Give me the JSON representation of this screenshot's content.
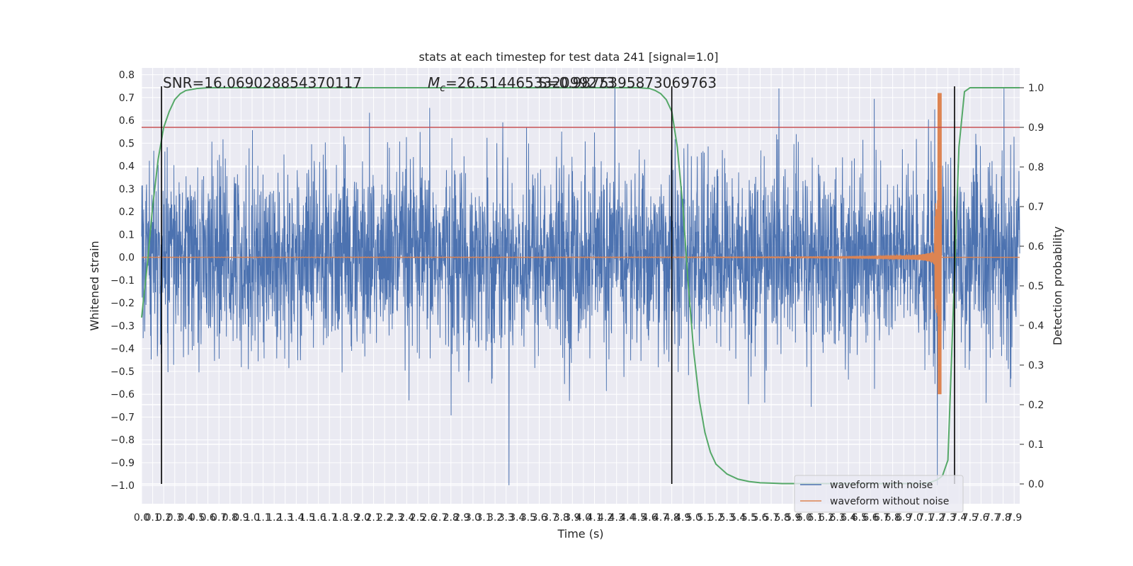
{
  "chart_data": {
    "type": "line",
    "title": "stats at each timestep for test data 241 [signal=1.0]",
    "xlabel": "Time (s)",
    "ylabel": "Whitened strain",
    "y2label": "Detection probability",
    "xlim": [
      0.0,
      7.95
    ],
    "ylim": [
      -1.08,
      0.83
    ],
    "y2lim": [
      -0.05,
      1.05
    ],
    "x_ticks": [
      0.0,
      0.1,
      0.2,
      0.3,
      0.4,
      0.5,
      0.6,
      0.7,
      0.8,
      0.9,
      1.0,
      1.1,
      1.2,
      1.3,
      1.4,
      1.5,
      1.6,
      1.7,
      1.8,
      1.9,
      2.0,
      2.1,
      2.2,
      2.3,
      2.4,
      2.5,
      2.6,
      2.7,
      2.8,
      2.9,
      3.0,
      3.1,
      3.2,
      3.3,
      3.4,
      3.5,
      3.6,
      3.7,
      3.8,
      3.9,
      4.0,
      4.1,
      4.2,
      4.3,
      4.4,
      4.5,
      4.6,
      4.7,
      4.8,
      4.9,
      5.0,
      5.1,
      5.2,
      5.3,
      5.4,
      5.5,
      5.6,
      5.7,
      5.8,
      5.9,
      6.0,
      6.1,
      6.2,
      6.3,
      6.4,
      6.5,
      6.6,
      6.7,
      6.8,
      6.9,
      7.0,
      7.1,
      7.2,
      7.3,
      7.4,
      7.5,
      7.6,
      7.7,
      7.8,
      7.9
    ],
    "y_ticks": [
      0.8,
      0.7,
      0.6,
      0.5,
      0.4,
      0.3,
      0.2,
      0.1,
      0.0,
      -0.1,
      -0.2,
      -0.3,
      -0.4,
      -0.5,
      -0.6,
      -0.7,
      -0.8,
      -0.9,
      -1.0
    ],
    "y_tick_labels": [
      "0.8",
      "0.7",
      "0.6",
      "0.5",
      "0.4",
      "0.3",
      "0.2",
      "0.1",
      "0.0",
      "−0.1",
      "−0.2",
      "−0.3",
      "−0.4",
      "−0.5",
      "−0.6",
      "−0.7",
      "−0.8",
      "−0.9",
      "−1.0"
    ],
    "y2_ticks": [
      1.0,
      0.9,
      0.8,
      0.7,
      0.6,
      0.5,
      0.4,
      0.3,
      0.2,
      0.1,
      0.0
    ],
    "y2_tick_labels": [
      "1.0",
      "0.9",
      "0.8",
      "0.7",
      "0.6",
      "0.5",
      "0.4",
      "0.3",
      "0.2",
      "0.1",
      "0.0"
    ],
    "grid": true,
    "legend_position": "bottom-right",
    "annotations": {
      "snr": "SNR=16.069028854370117",
      "mc_prefix": "M",
      "mc_sub": "c",
      "mc_value": "=26.514465332099273",
      "s_text": "S=0.9875395873069763"
    },
    "vertical_markers_x": [
      0.18,
      4.8,
      7.36
    ],
    "threshold_probability": 0.9,
    "series": [
      {
        "name": "waveform with noise",
        "color": "#4c72b0",
        "noise_envelope": 0.38,
        "peak_abs": 0.74,
        "description_points": 0
      },
      {
        "name": "waveform without noise",
        "color": "#dd8452",
        "chirp_start_x": 0.0,
        "chirp_merger_x": 7.23,
        "chirp_peak_y": 0.72,
        "chirp_min_y": -0.6
      },
      {
        "name": "detection probability",
        "color": "#55a868",
        "axis": "right",
        "x": [
          0.0,
          0.05,
          0.1,
          0.15,
          0.2,
          0.25,
          0.3,
          0.35,
          0.4,
          0.5,
          0.6,
          0.8,
          1.0,
          2.0,
          3.0,
          4.0,
          4.5,
          4.6,
          4.65,
          4.7,
          4.75,
          4.8,
          4.85,
          4.9,
          4.95,
          5.0,
          5.05,
          5.1,
          5.15,
          5.2,
          5.3,
          5.4,
          5.5,
          5.6,
          5.7,
          5.8,
          6.0,
          6.5,
          7.0,
          7.1,
          7.15,
          7.2,
          7.25,
          7.3,
          7.35,
          7.4,
          7.45,
          7.5,
          7.6,
          7.95
        ],
        "y": [
          0.42,
          0.55,
          0.7,
          0.82,
          0.9,
          0.94,
          0.97,
          0.985,
          0.993,
          0.998,
          1.0,
          1.0,
          1.0,
          1.0,
          1.0,
          1.0,
          1.0,
          0.998,
          0.993,
          0.985,
          0.97,
          0.94,
          0.85,
          0.7,
          0.5,
          0.33,
          0.21,
          0.13,
          0.08,
          0.05,
          0.025,
          0.012,
          0.006,
          0.003,
          0.002,
          0.001,
          0.001,
          0.001,
          0.001,
          0.001,
          0.005,
          0.01,
          0.02,
          0.06,
          0.45,
          0.85,
          0.99,
          1.0,
          1.0,
          1.0
        ]
      }
    ],
    "legend": [
      "waveform with noise",
      "waveform without noise"
    ]
  }
}
